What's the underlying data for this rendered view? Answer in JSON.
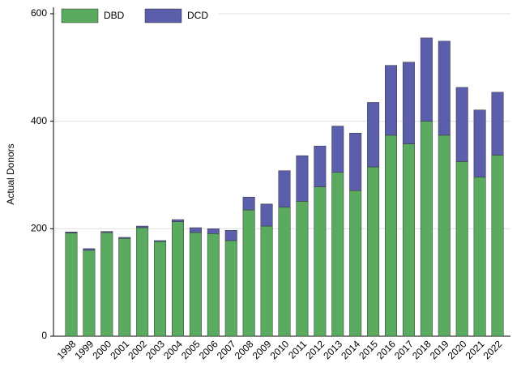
{
  "chart_data": {
    "type": "stacked_bar",
    "y_label": "Actual Donors",
    "categories": [
      "1998",
      "1999",
      "2000",
      "2001",
      "2002",
      "2003",
      "2004",
      "2005",
      "2006",
      "2007",
      "2008",
      "2009",
      "2010",
      "2011",
      "2012",
      "2013",
      "2014",
      "2015",
      "2016",
      "2017",
      "2018",
      "2019",
      "2020",
      "2021",
      "2022"
    ],
    "series": [
      {
        "name": "DBD",
        "color": "#5aab5f",
        "values": [
          192,
          160,
          193,
          182,
          202,
          176,
          213,
          193,
          191,
          178,
          235,
          205,
          240,
          251,
          278,
          305,
          271,
          315,
          374,
          358,
          400,
          374,
          325,
          296,
          337
        ]
      },
      {
        "name": "DCD",
        "color": "#5a5eab",
        "values": [
          2,
          3,
          2,
          2,
          3,
          2,
          4,
          9,
          9,
          19,
          24,
          41,
          68,
          85,
          76,
          86,
          107,
          120,
          130,
          152,
          155,
          175,
          138,
          125,
          117
        ]
      }
    ],
    "ylim": [
      0,
      600
    ],
    "yticks": [
      0,
      200,
      400,
      600
    ],
    "grid": true,
    "legend": "top-left"
  }
}
